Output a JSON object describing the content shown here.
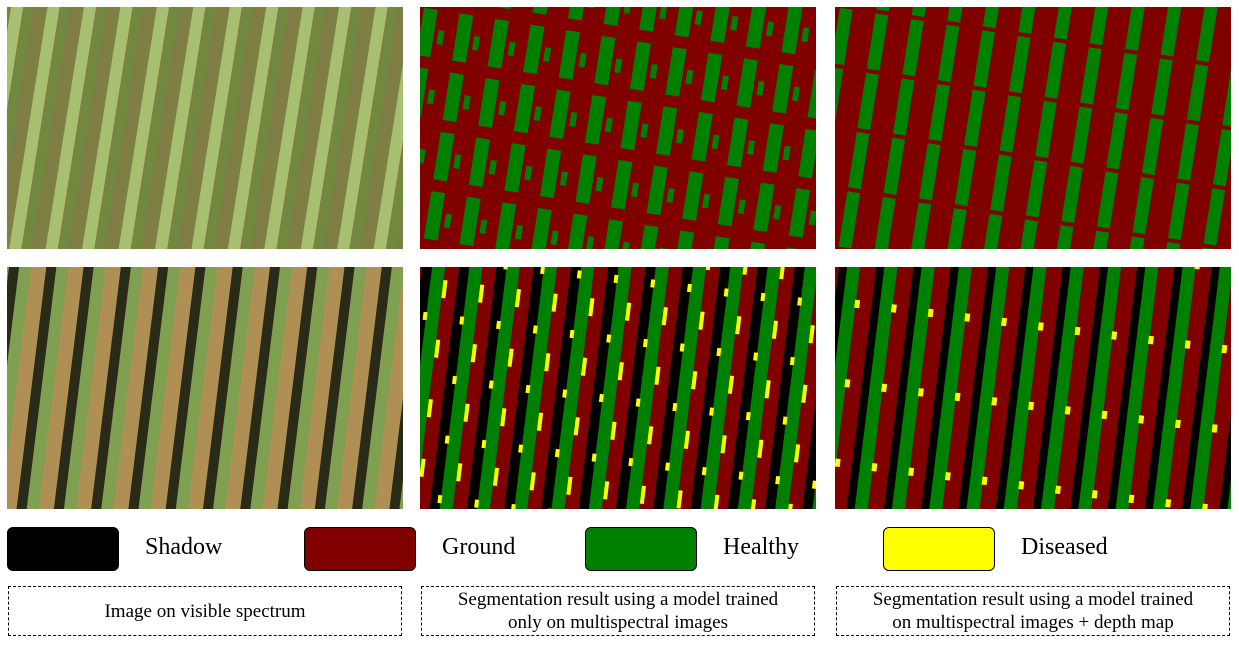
{
  "legend": {
    "items": [
      {
        "label": "Shadow",
        "color": "#000000"
      },
      {
        "label": "Ground",
        "color": "#800000"
      },
      {
        "label": "Healthy",
        "color": "#008000"
      },
      {
        "label": "Diseased",
        "color": "#ffff00"
      }
    ]
  },
  "captions": [
    {
      "lines": [
        "Image on visible spectrum"
      ]
    },
    {
      "lines": [
        "Segmentation result using a model trained",
        "only on multispectral images"
      ]
    },
    {
      "lines": [
        "Segmentation result using a model trained",
        "on multispectral images + depth map"
      ]
    }
  ]
}
